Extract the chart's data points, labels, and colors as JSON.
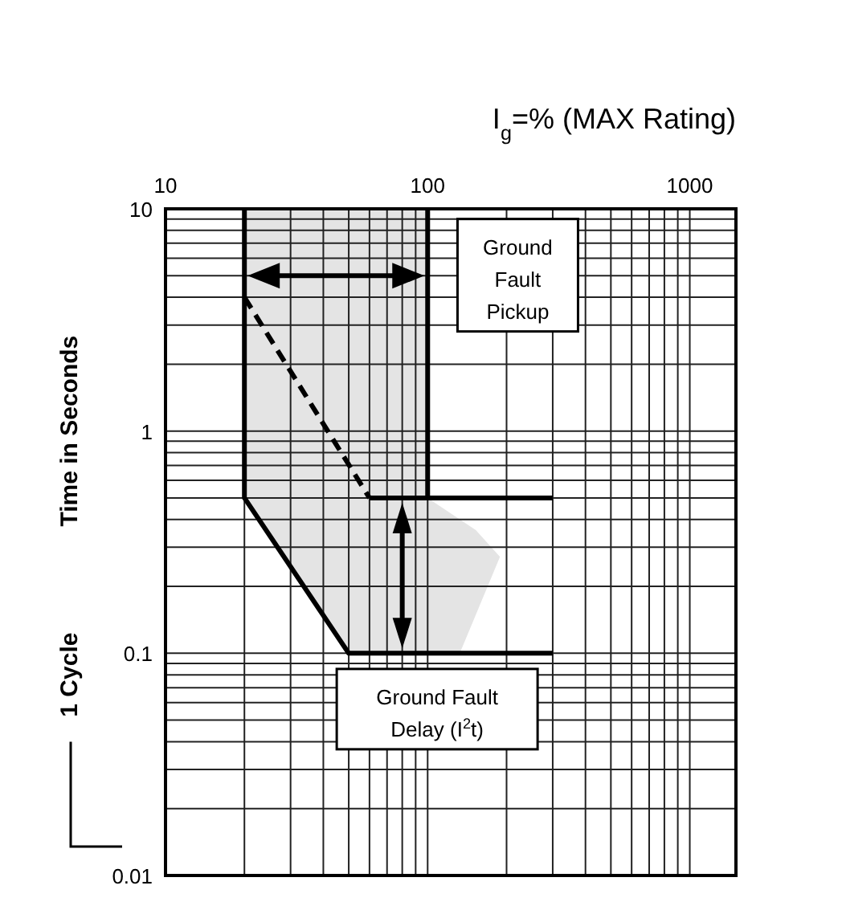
{
  "chart_data": {
    "type": "line",
    "xlabel": "I$_{g}$=% (MAX Rating)",
    "ylabel": "Time in Seconds",
    "log": "xy",
    "grid": true,
    "xlim": [
      10,
      1500
    ],
    "xticks": [
      10,
      100,
      1000
    ],
    "ylim": [
      0.01,
      10
    ],
    "yticks": [
      0.01,
      0.1,
      1,
      10
    ],
    "series": [
      {
        "color": "#000000",
        "x": [
          20,
          20,
          50,
          300
        ],
        "values": [
          10,
          0.5,
          0.1,
          0.1
        ],
        "line_style": "solid"
      },
      {
        "color": "#000000",
        "x": [
          20,
          60
        ],
        "values": [
          4,
          0.5
        ],
        "line_style": "dashed"
      },
      {
        "color": "#000000",
        "x": [
          60,
          300
        ],
        "values": [
          0.5,
          0.5
        ],
        "line_style": "solid"
      },
      {
        "color": "#000000",
        "x": [
          100,
          100
        ],
        "values": [
          10,
          0.5
        ],
        "line_style": "solid"
      }
    ],
    "annotations": [
      "Ground Fault Pickup",
      "Ground Fault Delay (I$^{2}$t)",
      "1 Cycle"
    ]
  }
}
